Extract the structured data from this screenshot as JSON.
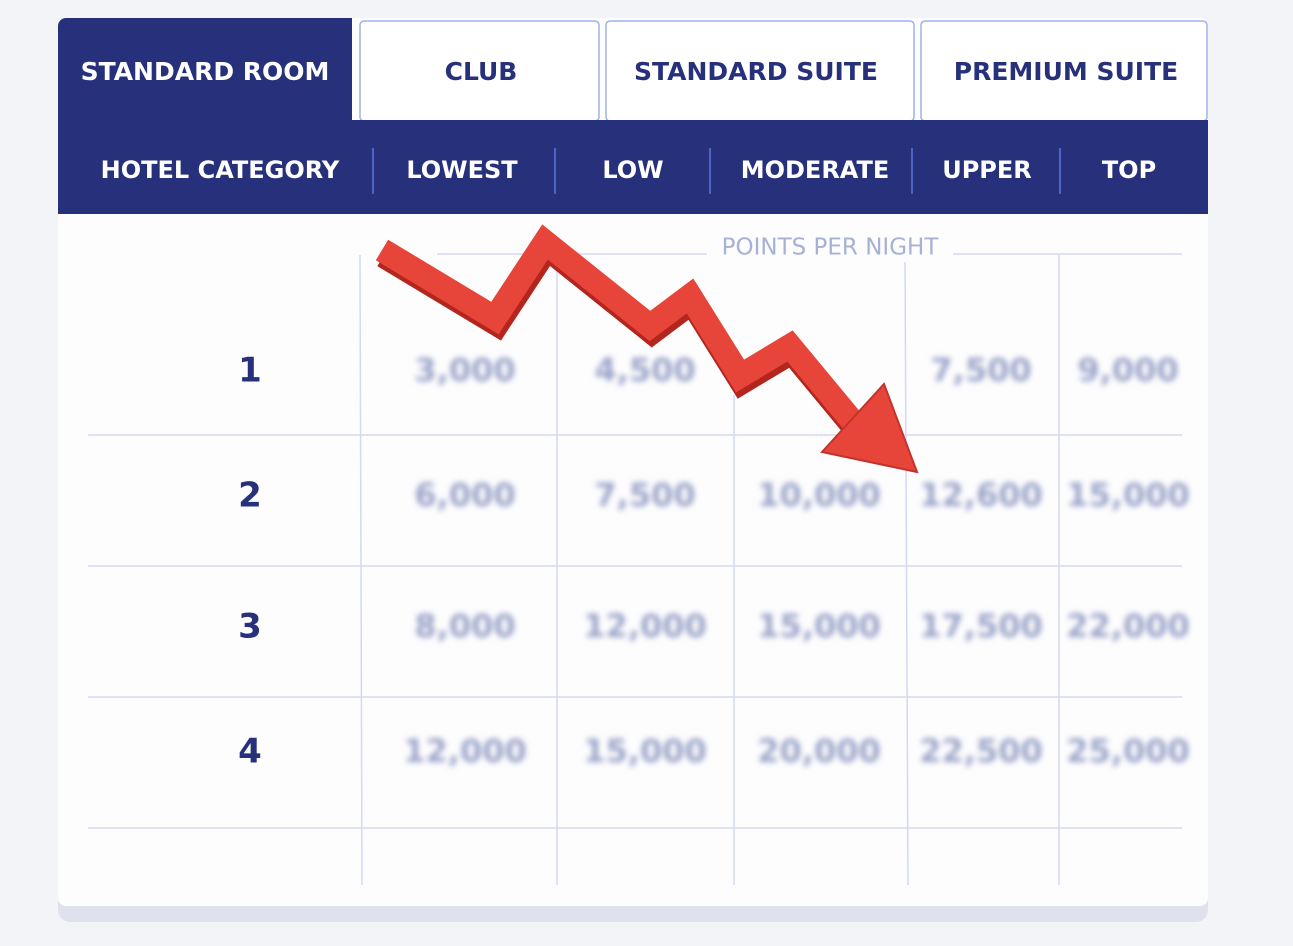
{
  "tabs": [
    "STANDARD ROOM",
    "CLUB",
    "STANDARD SUITE",
    "PREMIUM SUITE"
  ],
  "header": [
    "HOTEL CATEGORY",
    "LOWEST",
    "LOW",
    "MODERATE",
    "UPPER",
    "TOP"
  ],
  "points_label": "POINTS PER NIGHT",
  "rows": [
    {
      "category": "1",
      "values": [
        "3,000",
        "4,500",
        null,
        "7,500",
        "9,000"
      ]
    },
    {
      "category": "2",
      "values": [
        "6,000",
        "7,500",
        "10,000",
        "12,600",
        "15,000"
      ]
    },
    {
      "category": "3",
      "values": [
        "8,000",
        "12,000",
        "15,000",
        "17,500",
        "22,000"
      ]
    },
    {
      "category": "4",
      "values": [
        "12,000",
        "15,000",
        "20,000",
        "22,500",
        "25,000"
      ]
    }
  ]
}
